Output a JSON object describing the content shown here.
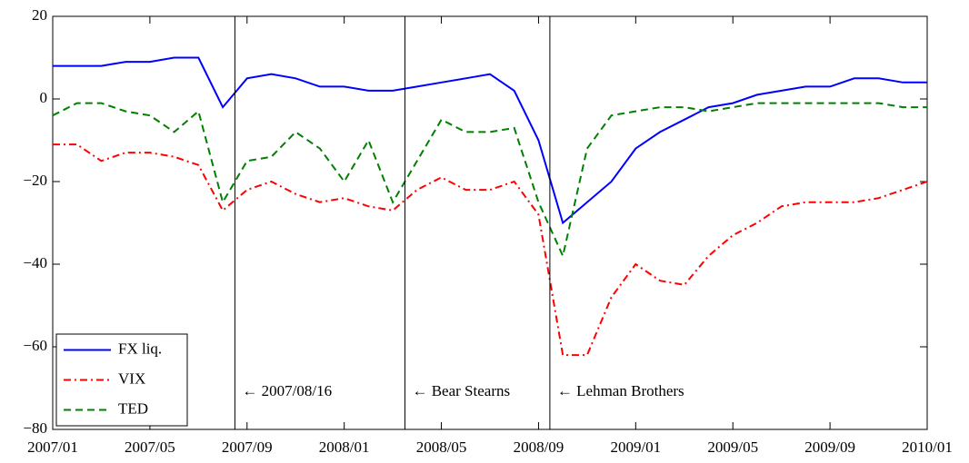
{
  "chart_data": {
    "type": "line",
    "x": [
      "2007/01",
      "2007/02",
      "2007/03",
      "2007/04",
      "2007/05",
      "2007/06",
      "2007/07",
      "2007/08",
      "2007/09",
      "2007/10",
      "2007/11",
      "2007/12",
      "2008/01",
      "2008/02",
      "2008/03",
      "2008/04",
      "2008/05",
      "2008/06",
      "2008/07",
      "2008/08",
      "2008/09",
      "2008/10",
      "2008/11",
      "2008/12",
      "2009/01",
      "2009/02",
      "2009/03",
      "2009/04",
      "2009/05",
      "2009/06",
      "2009/07",
      "2009/08",
      "2009/09",
      "2009/10",
      "2009/11",
      "2009/12",
      "2010/01"
    ],
    "series": [
      {
        "name": "FX liq.",
        "color": "#0000ff",
        "linestyle": "solid",
        "values": [
          8,
          8,
          8,
          9,
          9,
          10,
          10,
          -2,
          5,
          6,
          5,
          3,
          3,
          2,
          2,
          3,
          4,
          5,
          6,
          2,
          -10,
          -30,
          -25,
          -20,
          -12,
          -8,
          -5,
          -2,
          -1,
          1,
          2,
          3,
          3,
          5,
          5,
          4,
          4
        ]
      },
      {
        "name": "VIX",
        "color": "#ff0000",
        "linestyle": "dashdot",
        "values": [
          -11,
          -11,
          -15,
          -13,
          -13,
          -14,
          -16,
          -27,
          -22,
          -20,
          -23,
          -25,
          -24,
          -26,
          -27,
          -22,
          -19,
          -22,
          -22,
          -20,
          -28,
          -62,
          -62,
          -48,
          -40,
          -44,
          -45,
          -38,
          -33,
          -30,
          -26,
          -25,
          -25,
          -25,
          -24,
          -22,
          -20
        ]
      },
      {
        "name": "TED",
        "color": "#008000",
        "linestyle": "dashed",
        "values": [
          -4,
          -1,
          -1,
          -3,
          -4,
          -8,
          -3,
          -25,
          -15,
          -14,
          -8,
          -12,
          -20,
          -10,
          -25,
          -15,
          -5,
          -8,
          -8,
          -7,
          -25,
          -38,
          -12,
          -4,
          -3,
          -2,
          -2,
          -3,
          -2,
          -1,
          -1,
          -1,
          -1,
          -1,
          -1,
          -2,
          -2
        ]
      }
    ],
    "xlim": [
      "2007/01",
      "2010/01"
    ],
    "xticks": [
      "2007/01",
      "2007/05",
      "2007/09",
      "2008/01",
      "2008/05",
      "2008/09",
      "2009/01",
      "2009/05",
      "2009/09",
      "2010/01"
    ],
    "ylim": [
      -80,
      20
    ],
    "yticks": [
      {
        "value": -80,
        "label": "−80"
      },
      {
        "value": -60,
        "label": "−60"
      },
      {
        "value": -40,
        "label": "−40"
      },
      {
        "value": -20,
        "label": "−20"
      },
      0,
      20
    ],
    "events": [
      {
        "x": "2007/08/16",
        "label": "← 2007/08/16"
      },
      {
        "x": "2008/03/16",
        "label": "← Bear Stearns"
      },
      {
        "x": "2008/09/15",
        "label": "← Lehman Brothers"
      }
    ],
    "legend": "lower left",
    "grid": false
  }
}
